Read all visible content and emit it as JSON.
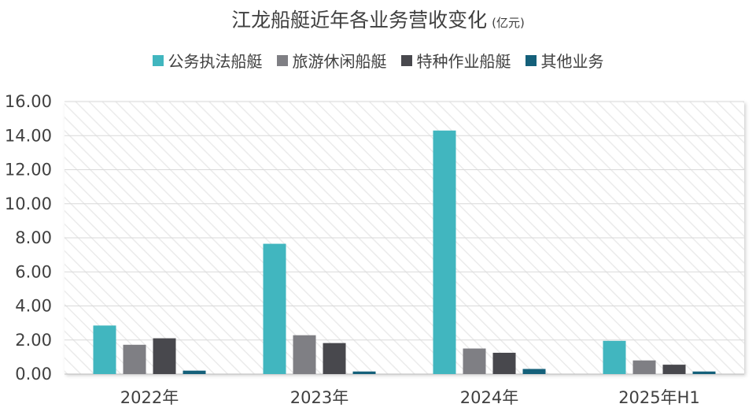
{
  "chart_data": {
    "type": "bar",
    "title": "江龙船艇近年各业务营收变化",
    "title_unit": "(亿元)",
    "categories": [
      "2022年",
      "2023年",
      "2024年",
      "2025年H1"
    ],
    "series": [
      {
        "name": "公务执法船艇",
        "color": "#41b6bf",
        "values": [
          2.85,
          7.65,
          14.3,
          1.95
        ]
      },
      {
        "name": "旅游休闲船艇",
        "color": "#7f7f84",
        "values": [
          1.72,
          2.28,
          1.5,
          0.8
        ]
      },
      {
        "name": "特种作业船艇",
        "color": "#48484d",
        "values": [
          2.1,
          1.82,
          1.25,
          0.55
        ]
      },
      {
        "name": "其他业务",
        "color": "#14607a",
        "values": [
          0.2,
          0.15,
          0.3,
          0.15
        ]
      }
    ],
    "yticks": [
      "0.00",
      "2.00",
      "4.00",
      "6.00",
      "8.00",
      "10.00",
      "12.00",
      "14.00",
      "16.00"
    ],
    "ylim": [
      0,
      16
    ],
    "grid": true,
    "legend_position": "top"
  }
}
